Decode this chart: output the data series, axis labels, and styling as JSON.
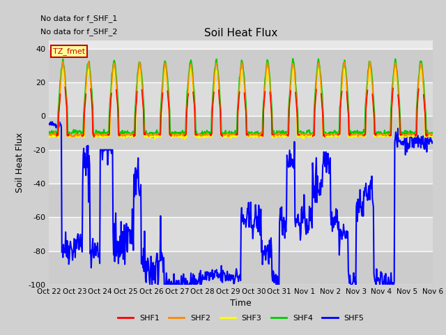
{
  "title": "Soil Heat Flux",
  "xlabel": "Time",
  "ylabel": "Soil Heat Flux",
  "annotations": [
    "No data for f_SHF_1",
    "No data for f_SHF_2"
  ],
  "tz_label": "TZ_fmet",
  "ylim": [
    -100,
    45
  ],
  "yticks": [
    -100,
    -80,
    -60,
    -40,
    -20,
    0,
    20,
    40
  ],
  "x_tick_labels": [
    "Oct 22",
    "Oct 23",
    "Oct 24",
    "Oct 25",
    "Oct 26",
    "Oct 27",
    "Oct 28",
    "Oct 29",
    "Oct 30",
    "Oct 31",
    "Nov 1",
    "Nov 2",
    "Nov 3",
    "Nov 4",
    "Nov 5",
    "Nov 6"
  ],
  "legend_entries": [
    "SHF1",
    "SHF2",
    "SHF3",
    "SHF4",
    "SHF5"
  ],
  "legend_colors": [
    "#ff0000",
    "#ff8800",
    "#ffff00",
    "#00cc00",
    "#0000ff"
  ],
  "bg_bands": [
    "#d8d8d8",
    "#e0e0e0",
    "#d8d8d8",
    "#e0e0e0",
    "#d8d8d8",
    "#e0e0e0",
    "#d8d8d8"
  ],
  "fig_bg": "#d0d0d0",
  "plot_bg": "#e8e8e8"
}
